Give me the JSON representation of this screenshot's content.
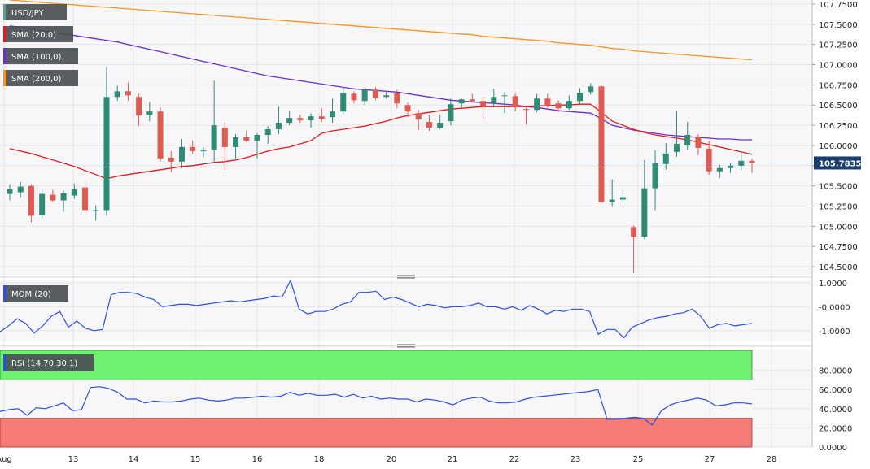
{
  "chart_data": [
    {
      "type": "candlestick",
      "panel": "price",
      "symbol_label": "USD/JPY",
      "legend": [
        {
          "name": "SMA (20,0)",
          "color": "#e31a1c"
        },
        {
          "name": "SMA (100,0)",
          "color": "#6a2fc8"
        },
        {
          "name": "SMA (200,0)",
          "color": "#f7931e"
        }
      ],
      "last_price_label": "105.7835",
      "last_price": 105.7835,
      "ylim": [
        104.4,
        107.8
      ],
      "y_ticks": [
        "107.7500",
        "107.5000",
        "107.2500",
        "107.0000",
        "106.7500",
        "106.5000",
        "106.2500",
        "106.0000",
        "105.7500",
        "105.5000",
        "105.2500",
        "105.0000",
        "104.7500",
        "104.5000"
      ],
      "x_tick_labels": [
        "Aug",
        "13",
        "14",
        "15",
        "16",
        "18",
        "20",
        "21",
        "22",
        "23",
        "25",
        "27",
        "28"
      ],
      "candles": [
        {
          "o": 105.4,
          "h": 105.52,
          "l": 105.32,
          "c": 105.46
        },
        {
          "o": 105.42,
          "h": 105.55,
          "l": 105.36,
          "c": 105.49
        },
        {
          "o": 105.5,
          "h": 105.52,
          "l": 105.05,
          "c": 105.13
        },
        {
          "o": 105.14,
          "h": 105.45,
          "l": 105.1,
          "c": 105.4
        },
        {
          "o": 105.39,
          "h": 105.45,
          "l": 105.3,
          "c": 105.32
        },
        {
          "o": 105.32,
          "h": 105.44,
          "l": 105.18,
          "c": 105.41
        },
        {
          "o": 105.38,
          "h": 105.53,
          "l": 105.34,
          "c": 105.46
        },
        {
          "o": 105.48,
          "h": 105.55,
          "l": 105.16,
          "c": 105.2
        },
        {
          "o": 105.2,
          "h": 105.26,
          "l": 105.07,
          "c": 105.2
        },
        {
          "o": 105.2,
          "h": 106.97,
          "l": 105.13,
          "c": 106.6
        },
        {
          "o": 106.6,
          "h": 106.74,
          "l": 106.55,
          "c": 106.67
        },
        {
          "o": 106.67,
          "h": 106.78,
          "l": 106.55,
          "c": 106.62
        },
        {
          "o": 106.6,
          "h": 106.64,
          "l": 106.24,
          "c": 106.37
        },
        {
          "o": 106.38,
          "h": 106.54,
          "l": 106.3,
          "c": 106.42
        },
        {
          "o": 106.42,
          "h": 106.47,
          "l": 105.8,
          "c": 105.84
        },
        {
          "o": 105.85,
          "h": 105.93,
          "l": 105.67,
          "c": 105.8
        },
        {
          "o": 105.8,
          "h": 106.08,
          "l": 105.72,
          "c": 105.98
        },
        {
          "o": 105.98,
          "h": 106.06,
          "l": 105.9,
          "c": 105.93
        },
        {
          "o": 105.93,
          "h": 105.98,
          "l": 105.85,
          "c": 105.95
        },
        {
          "o": 105.95,
          "h": 106.8,
          "l": 105.8,
          "c": 106.25
        },
        {
          "o": 106.22,
          "h": 106.28,
          "l": 105.7,
          "c": 105.98
        },
        {
          "o": 105.98,
          "h": 106.14,
          "l": 105.84,
          "c": 106.1
        },
        {
          "o": 106.1,
          "h": 106.18,
          "l": 106.04,
          "c": 106.06
        },
        {
          "o": 106.06,
          "h": 106.15,
          "l": 105.84,
          "c": 106.13
        },
        {
          "o": 106.13,
          "h": 106.24,
          "l": 106.02,
          "c": 106.2
        },
        {
          "o": 106.2,
          "h": 106.48,
          "l": 106.14,
          "c": 106.28
        },
        {
          "o": 106.28,
          "h": 106.43,
          "l": 106.25,
          "c": 106.34
        },
        {
          "o": 106.34,
          "h": 106.38,
          "l": 106.28,
          "c": 106.31
        },
        {
          "o": 106.31,
          "h": 106.4,
          "l": 106.22,
          "c": 106.36
        },
        {
          "o": 106.36,
          "h": 106.46,
          "l": 106.29,
          "c": 106.33
        },
        {
          "o": 106.35,
          "h": 106.58,
          "l": 106.28,
          "c": 106.42
        },
        {
          "o": 106.42,
          "h": 106.72,
          "l": 106.39,
          "c": 106.65
        },
        {
          "o": 106.64,
          "h": 106.67,
          "l": 106.52,
          "c": 106.56
        },
        {
          "o": 106.55,
          "h": 106.71,
          "l": 106.5,
          "c": 106.69
        },
        {
          "o": 106.69,
          "h": 106.72,
          "l": 106.56,
          "c": 106.59
        },
        {
          "o": 106.6,
          "h": 106.66,
          "l": 106.58,
          "c": 106.62
        },
        {
          "o": 106.65,
          "h": 106.69,
          "l": 106.46,
          "c": 106.52
        },
        {
          "o": 106.5,
          "h": 106.53,
          "l": 106.35,
          "c": 106.42
        },
        {
          "o": 106.4,
          "h": 106.44,
          "l": 106.19,
          "c": 106.32
        },
        {
          "o": 106.29,
          "h": 106.37,
          "l": 106.18,
          "c": 106.22
        },
        {
          "o": 106.22,
          "h": 106.38,
          "l": 106.2,
          "c": 106.28
        },
        {
          "o": 106.3,
          "h": 106.58,
          "l": 106.25,
          "c": 106.51
        },
        {
          "o": 106.52,
          "h": 106.58,
          "l": 106.45,
          "c": 106.57
        },
        {
          "o": 106.57,
          "h": 106.64,
          "l": 106.53,
          "c": 106.55
        },
        {
          "o": 106.55,
          "h": 106.6,
          "l": 106.33,
          "c": 106.48
        },
        {
          "o": 106.52,
          "h": 106.7,
          "l": 106.47,
          "c": 106.6
        },
        {
          "o": 106.62,
          "h": 106.66,
          "l": 106.4,
          "c": 106.62
        },
        {
          "o": 106.61,
          "h": 106.64,
          "l": 106.42,
          "c": 106.47
        },
        {
          "o": 106.45,
          "h": 106.49,
          "l": 106.26,
          "c": 106.44
        },
        {
          "o": 106.44,
          "h": 106.64,
          "l": 106.41,
          "c": 106.58
        },
        {
          "o": 106.58,
          "h": 106.64,
          "l": 106.47,
          "c": 106.5
        },
        {
          "o": 106.52,
          "h": 106.56,
          "l": 106.41,
          "c": 106.46
        },
        {
          "o": 106.46,
          "h": 106.62,
          "l": 106.44,
          "c": 106.55
        },
        {
          "o": 106.55,
          "h": 106.71,
          "l": 106.51,
          "c": 106.65
        },
        {
          "o": 106.66,
          "h": 106.77,
          "l": 106.63,
          "c": 106.73
        },
        {
          "o": 106.73,
          "h": 106.75,
          "l": 105.29,
          "c": 105.3
        },
        {
          "o": 105.3,
          "h": 105.58,
          "l": 105.24,
          "c": 105.33
        },
        {
          "o": 105.33,
          "h": 105.46,
          "l": 105.29,
          "c": 105.36
        },
        {
          "o": 104.99,
          "h": 105.01,
          "l": 104.42,
          "c": 104.87
        },
        {
          "o": 104.87,
          "h": 105.82,
          "l": 104.84,
          "c": 105.47
        },
        {
          "o": 105.47,
          "h": 105.94,
          "l": 105.2,
          "c": 105.78
        },
        {
          "o": 105.77,
          "h": 106.03,
          "l": 105.7,
          "c": 105.9
        },
        {
          "o": 105.92,
          "h": 106.43,
          "l": 105.86,
          "c": 106.02
        },
        {
          "o": 106.0,
          "h": 106.29,
          "l": 105.95,
          "c": 106.13
        },
        {
          "o": 106.11,
          "h": 106.14,
          "l": 105.88,
          "c": 105.97
        },
        {
          "o": 105.96,
          "h": 106.06,
          "l": 105.64,
          "c": 105.68
        },
        {
          "o": 105.68,
          "h": 105.76,
          "l": 105.6,
          "c": 105.72
        },
        {
          "o": 105.72,
          "h": 105.78,
          "l": 105.66,
          "c": 105.75
        },
        {
          "o": 105.75,
          "h": 105.93,
          "l": 105.7,
          "c": 105.81
        },
        {
          "o": 105.81,
          "h": 105.84,
          "l": 105.66,
          "c": 105.78
        }
      ],
      "sma20": [
        105.96,
        105.93,
        105.9,
        105.86,
        105.82,
        105.78,
        105.74,
        105.69,
        105.64,
        105.59,
        105.62,
        105.64,
        105.66,
        105.68,
        105.7,
        105.72,
        105.74,
        105.75,
        105.77,
        105.79,
        105.8,
        105.82,
        105.85,
        105.89,
        105.93,
        105.96,
        105.98,
        106.02,
        106.06,
        106.15,
        106.18,
        106.2,
        106.22,
        106.24,
        106.27,
        106.3,
        106.34,
        106.37,
        106.39,
        106.41,
        106.43,
        106.45,
        106.46,
        106.47,
        106.48,
        106.48,
        106.48,
        106.48,
        106.48,
        106.49,
        106.49,
        106.5,
        106.5,
        106.51,
        106.51,
        106.41,
        106.3,
        106.25,
        106.2,
        106.16,
        106.13,
        106.11,
        106.09,
        106.07,
        106.04,
        106.01,
        105.98,
        105.95,
        105.92,
        105.89
      ],
      "sma100": [
        107.48,
        107.46,
        107.44,
        107.42,
        107.4,
        107.38,
        107.36,
        107.34,
        107.32,
        107.3,
        107.28,
        107.25,
        107.22,
        107.19,
        107.16,
        107.13,
        107.1,
        107.07,
        107.04,
        107.01,
        106.98,
        106.95,
        106.92,
        106.89,
        106.86,
        106.84,
        106.82,
        106.8,
        106.78,
        106.76,
        106.74,
        106.72,
        106.7,
        106.69,
        106.68,
        106.67,
        106.66,
        106.64,
        106.62,
        106.6,
        106.58,
        106.56,
        106.55,
        106.54,
        106.53,
        106.52,
        106.51,
        106.5,
        106.48,
        106.47,
        106.45,
        106.43,
        106.42,
        106.41,
        106.4,
        106.33,
        106.25,
        106.22,
        106.19,
        106.17,
        106.15,
        106.13,
        106.12,
        106.11,
        106.1,
        106.09,
        106.08,
        106.08,
        106.07,
        106.07
      ],
      "sma200": [
        107.8,
        107.79,
        107.78,
        107.77,
        107.76,
        107.75,
        107.74,
        107.73,
        107.72,
        107.71,
        107.7,
        107.69,
        107.68,
        107.67,
        107.66,
        107.65,
        107.64,
        107.63,
        107.62,
        107.61,
        107.6,
        107.59,
        107.58,
        107.57,
        107.56,
        107.55,
        107.54,
        107.53,
        107.52,
        107.51,
        107.5,
        107.49,
        107.48,
        107.47,
        107.46,
        107.45,
        107.44,
        107.43,
        107.42,
        107.41,
        107.4,
        107.39,
        107.38,
        107.37,
        107.35,
        107.34,
        107.33,
        107.32,
        107.31,
        107.3,
        107.29,
        107.27,
        107.26,
        107.25,
        107.24,
        107.22,
        107.2,
        107.19,
        107.17,
        107.16,
        107.15,
        107.14,
        107.13,
        107.12,
        107.11,
        107.1,
        107.09,
        107.08,
        107.07,
        107.06
      ],
      "colors": {
        "up": "#2e8b74",
        "down": "#e05a4f",
        "last_price_line": "#1c3f6e"
      }
    },
    {
      "type": "line",
      "panel": "momentum",
      "label": "MOM (20)",
      "color": "#2b50e0",
      "ylim": [
        -1.45,
        1.1
      ],
      "y_ticks": [
        "1.0000",
        "-0.0000",
        "-1.0000"
      ],
      "values": [
        -1.05,
        -0.8,
        -0.5,
        -0.7,
        -1.1,
        -0.8,
        -0.4,
        -0.2,
        -0.85,
        -0.6,
        -0.9,
        -1.0,
        -0.95,
        0.5,
        0.6,
        0.6,
        0.55,
        0.4,
        0.3,
        0.0,
        0.05,
        0.1,
        0.1,
        0.05,
        0.1,
        0.15,
        0.2,
        0.25,
        0.2,
        0.25,
        0.3,
        0.35,
        0.45,
        0.4,
        1.1,
        -0.1,
        -0.3,
        -0.2,
        -0.2,
        -0.1,
        0.1,
        0.2,
        0.6,
        0.6,
        0.65,
        0.3,
        0.4,
        0.3,
        0.15,
        0.0,
        0.1,
        0.05,
        -0.05,
        0.0,
        0.0,
        0.05,
        0.15,
        0.0,
        0.0,
        -0.1,
        0.0,
        -0.15,
        0.05,
        -0.1,
        -0.3,
        -0.15,
        -0.2,
        -0.1,
        -0.1,
        -0.2,
        -1.15,
        -0.95,
        -0.95,
        -1.3,
        -0.85,
        -0.7,
        -0.55,
        -0.45,
        -0.4,
        -0.3,
        -0.25,
        -0.1,
        -0.4,
        -0.9,
        -0.75,
        -0.7,
        -0.8,
        -0.75,
        -0.7
      ],
      "colors": {
        "line": "#2b50e0"
      }
    },
    {
      "type": "line",
      "panel": "rsi",
      "label": "RSI (14,70,30,1)",
      "ylim": [
        0,
        100
      ],
      "y_ticks": [
        "80.0000",
        "60.0000",
        "40.0000",
        "20.0000",
        "0.0000"
      ],
      "overbought": 70,
      "oversold": 30,
      "values": [
        37,
        39,
        40,
        33,
        41,
        40,
        43,
        46,
        38,
        39,
        62,
        63,
        61,
        57,
        50,
        50,
        46,
        48,
        47,
        47,
        48,
        50,
        51,
        49,
        48,
        49,
        51,
        51,
        52,
        53,
        52,
        53,
        57,
        54,
        56,
        54,
        54,
        55,
        52,
        55,
        51,
        53,
        50,
        51,
        50,
        50,
        47,
        50,
        49,
        47,
        44,
        49,
        51,
        52,
        48,
        46,
        46,
        47,
        50,
        52,
        53,
        54,
        55,
        56,
        57,
        58,
        60,
        29,
        29,
        30,
        31,
        30,
        23,
        38,
        44,
        47,
        49,
        51,
        49,
        43,
        44,
        46,
        46,
        45
      ],
      "colors": {
        "line": "#2b50e0",
        "overbought_zone": "#6ff26f",
        "oversold_zone": "#f57b77"
      }
    }
  ]
}
